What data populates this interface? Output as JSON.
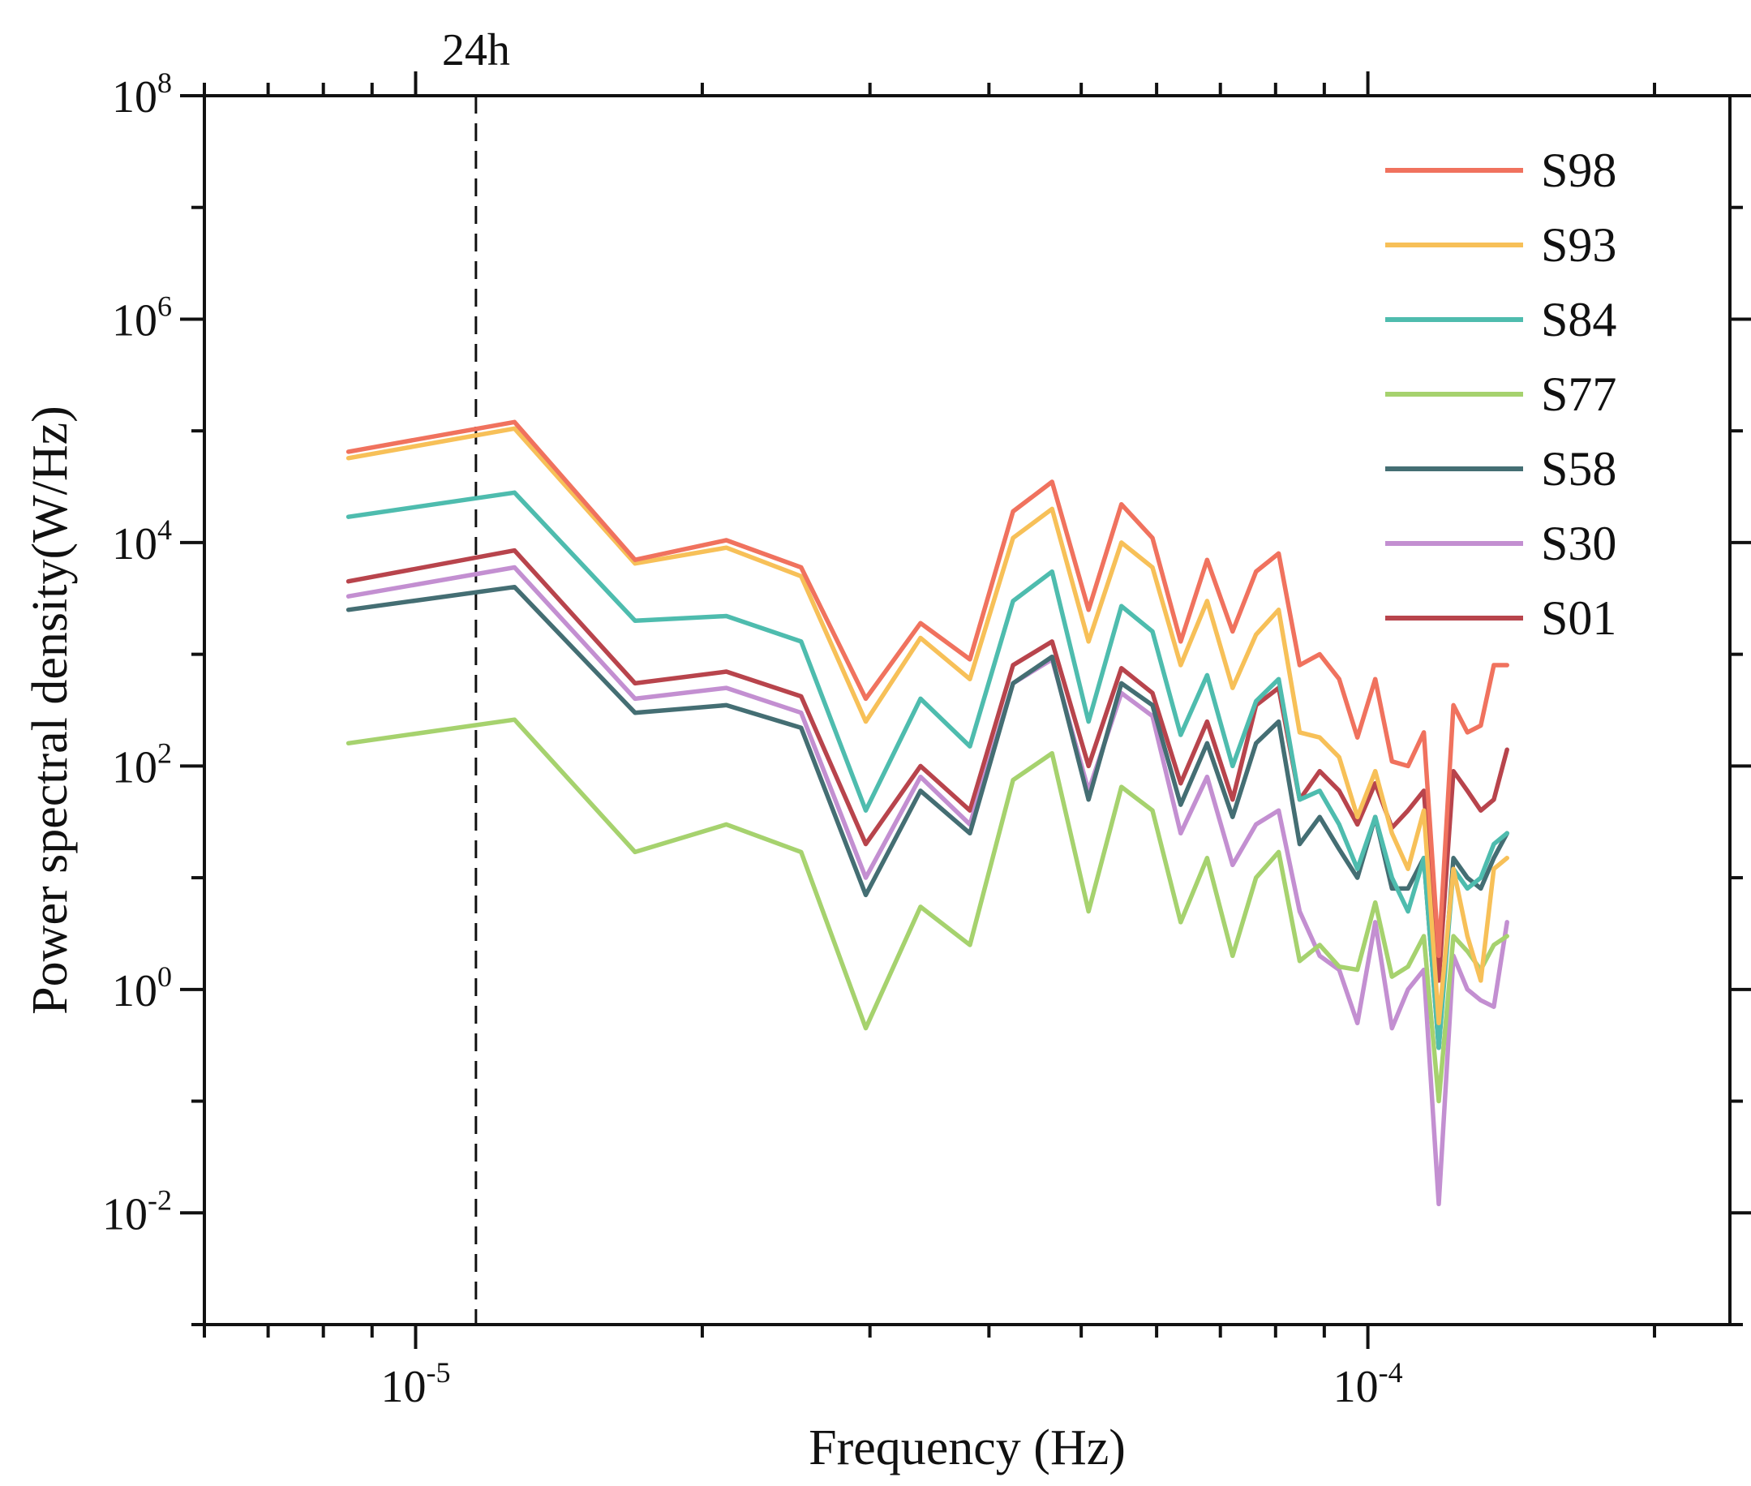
{
  "chart_data": {
    "type": "line",
    "title": "",
    "xlabel": "Frequency (Hz)",
    "ylabel": "Power spectral density(W/Hz)",
    "x_scale": "log",
    "y_scale": "log",
    "xlim": [
      6e-06,
      0.00024
    ],
    "ylim": [
      0.001,
      100000000
    ],
    "x_ticks": [
      {
        "value": 1e-05,
        "base": "10",
        "exp": "-5"
      },
      {
        "value": 0.0001,
        "base": "10",
        "exp": "-4"
      }
    ],
    "y_ticks": [
      {
        "value": 0.01,
        "base": "10",
        "exp": "-2"
      },
      {
        "value": 1,
        "base": "10",
        "exp": "0"
      },
      {
        "value": 100,
        "base": "10",
        "exp": "2"
      },
      {
        "value": 10000,
        "base": "10",
        "exp": "4"
      },
      {
        "value": 1000000,
        "base": "10",
        "exp": "6"
      },
      {
        "value": 100000000,
        "base": "10",
        "exp": "8"
      }
    ],
    "legend_position": "top-right",
    "annotation": {
      "label": "24h",
      "x": 1.157e-05,
      "style": "dashed-vertical-line"
    },
    "x": [
      8.5e-06,
      1.27e-05,
      1.7e-05,
      2.12e-05,
      2.54e-05,
      2.97e-05,
      3.39e-05,
      3.82e-05,
      4.24e-05,
      4.66e-05,
      5.09e-05,
      5.51e-05,
      5.94e-05,
      6.36e-05,
      6.78e-05,
      7.21e-05,
      7.63e-05,
      8.06e-05,
      8.48e-05,
      8.9e-05,
      9.33e-05,
      9.75e-05,
      0.0001018,
      0.000106,
      0.0001102,
      0.0001145,
      0.0001187,
      0.000123,
      0.0001272,
      0.0001314,
      0.0001356,
      0.00014
    ],
    "series": [
      {
        "name": "S98",
        "color": "#f0725e",
        "values": [
          65000,
          120000,
          7000,
          10500,
          6000,
          400,
          1900,
          900,
          19000,
          35000,
          2500,
          22000,
          11000,
          1300,
          7000,
          1600,
          5500,
          8000,
          800,
          1000,
          600,
          180,
          600,
          110,
          100,
          200,
          2,
          350,
          200,
          230,
          800,
          800
        ]
      },
      {
        "name": "S93",
        "color": "#f7c058",
        "values": [
          57000,
          105000,
          6500,
          9000,
          5000,
          250,
          1400,
          600,
          11000,
          20000,
          1300,
          10000,
          6000,
          800,
          3000,
          500,
          1500,
          2500,
          200,
          180,
          120,
          35,
          90,
          25,
          12,
          40,
          0.5,
          12,
          3,
          1.2,
          12,
          15
        ]
      },
      {
        "name": "S84",
        "color": "#4ebcae",
        "values": [
          17000,
          28000,
          2000,
          2200,
          1300,
          40,
          400,
          150,
          3000,
          5500,
          250,
          2700,
          1600,
          190,
          650,
          100,
          380,
          600,
          50,
          60,
          30,
          12,
          35,
          10,
          5,
          15,
          0.3,
          12,
          8,
          10,
          20,
          25
        ]
      },
      {
        "name": "S77",
        "color": "#a6d26e",
        "values": [
          160,
          260,
          17,
          30,
          17,
          0.45,
          5.5,
          2.5,
          75,
          130,
          5,
          65,
          40,
          4,
          15,
          2,
          10,
          17,
          1.8,
          2.5,
          1.6,
          1.5,
          6,
          1.3,
          1.6,
          3,
          0.1,
          3,
          2.2,
          1.5,
          2.5,
          3
        ]
      },
      {
        "name": "S58",
        "color": "#446e73",
        "values": [
          2500,
          4000,
          300,
          350,
          220,
          7,
          60,
          25,
          550,
          950,
          50,
          550,
          350,
          45,
          160,
          35,
          160,
          250,
          20,
          35,
          18,
          10,
          35,
          8,
          8,
          15,
          0.3,
          15,
          10,
          8,
          15,
          25
        ]
      },
      {
        "name": "S30",
        "color": "#c38fd1",
        "values": [
          3300,
          6000,
          400,
          500,
          300,
          10,
          80,
          30,
          550,
          900,
          60,
          450,
          280,
          25,
          80,
          13,
          30,
          40,
          5,
          2,
          1.5,
          0.5,
          4,
          0.45,
          1,
          1.5,
          0.012,
          2,
          1,
          0.8,
          0.7,
          4
        ]
      },
      {
        "name": "S01",
        "color": "#b8444c",
        "values": [
          4500,
          8500,
          550,
          700,
          420,
          20,
          100,
          40,
          800,
          1300,
          100,
          750,
          450,
          70,
          250,
          50,
          350,
          500,
          50,
          90,
          60,
          30,
          70,
          28,
          40,
          60,
          1.2,
          90,
          60,
          40,
          50,
          140
        ]
      }
    ]
  }
}
